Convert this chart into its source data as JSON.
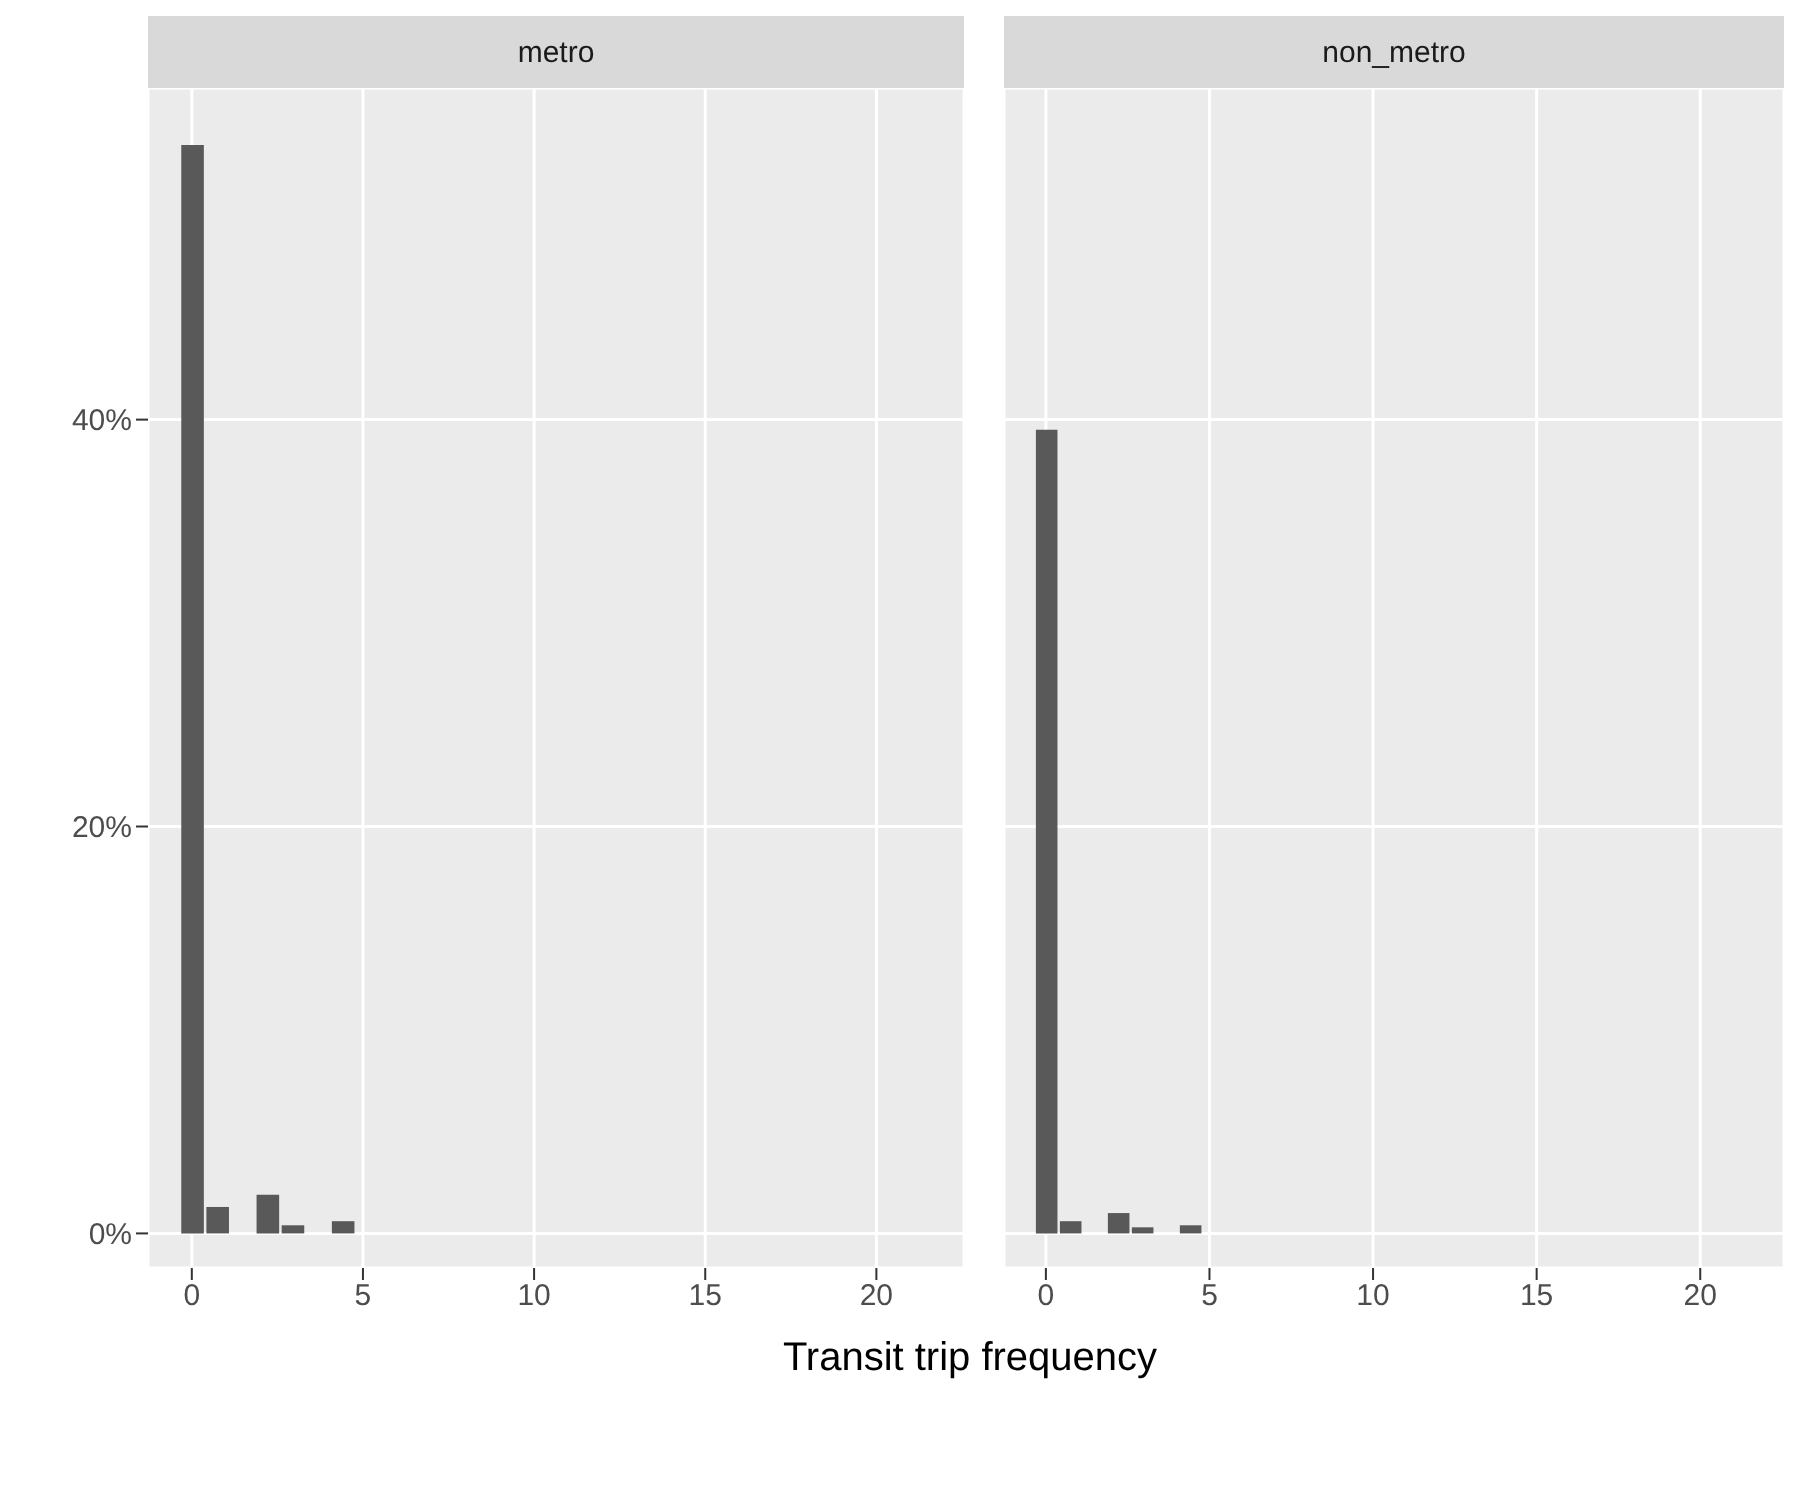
{
  "chart_data": [
    {
      "type": "histogram",
      "title": "metro",
      "xlabel": "Transit trip frequency",
      "color": "#595959",
      "bins": [
        -0.367,
        0.367,
        1.1,
        1.833,
        2.567,
        3.3,
        4.033,
        4.767,
        5.5,
        6.233,
        6.967,
        7.7,
        8.433,
        9.167,
        9.9,
        10.633,
        11.367,
        12.1,
        12.833,
        13.567,
        14.3,
        15.033,
        15.767,
        16.5,
        17.233,
        17.967,
        18.7,
        19.433,
        20.167,
        20.9,
        21.633,
        22.367
      ],
      "values": [
        53.5,
        1.3,
        0,
        1.9,
        0.4,
        0,
        0.6,
        0,
        0,
        0,
        0,
        0,
        0,
        0,
        0,
        0,
        0,
        0,
        0,
        0,
        0,
        0,
        0,
        0,
        0,
        0,
        0,
        0,
        0,
        0,
        0
      ],
      "xlim": [
        -1.28,
        22.56
      ],
      "xticks": [
        0,
        5,
        10,
        15,
        20
      ],
      "ylim": [
        -1.7,
        56.3
      ],
      "yticks": [
        {
          "value": 0,
          "label": "0%"
        },
        {
          "value": 20,
          "label": "20%"
        },
        {
          "value": 40,
          "label": "40%"
        }
      ],
      "grid": true
    },
    {
      "type": "histogram",
      "title": "non_metro",
      "color": "#595959",
      "bins": [
        -0.367,
        0.367,
        1.1,
        1.833,
        2.567,
        3.3,
        4.033,
        4.767,
        5.5,
        6.233,
        6.967,
        7.7,
        8.433,
        9.167,
        9.9,
        10.633,
        11.367,
        12.1,
        12.833,
        13.567,
        14.3,
        15.033,
        15.767,
        16.5,
        17.233,
        17.967,
        18.7,
        19.433,
        20.167,
        20.9,
        21.633,
        22.367
      ],
      "values": [
        39.5,
        0.6,
        0,
        1,
        0.3,
        0,
        0.4,
        0,
        0,
        0,
        0,
        0,
        0,
        0,
        0,
        0,
        0,
        0,
        0,
        0,
        0,
        0,
        0,
        0,
        0,
        0,
        0,
        0,
        0,
        0,
        0
      ],
      "xlim": [
        -1.28,
        22.56
      ],
      "xticks": [
        0,
        5,
        10,
        15,
        20
      ],
      "ylim": [
        -1.7,
        56.3
      ],
      "yticks": [
        {
          "value": 0,
          "label": null
        },
        {
          "value": 20,
          "label": null
        },
        {
          "value": 40,
          "label": null
        }
      ],
      "grid": true,
      "tick_labels": "x"
    }
  ]
}
